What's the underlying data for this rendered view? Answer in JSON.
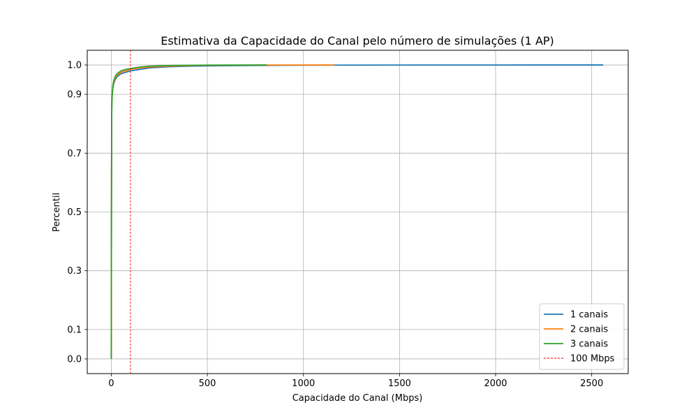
{
  "chart_data": {
    "type": "line",
    "title": "Estimativa da Capacidade do Canal pelo número de simulações (1 AP)",
    "xlabel": "Capacidade do Canal (Mbps)",
    "ylabel": "Percentil",
    "xlim": [
      -125,
      2690
    ],
    "ylim": [
      -0.05,
      1.05
    ],
    "xticks": [
      0,
      500,
      1000,
      1500,
      2000,
      2500
    ],
    "xtick_labels": [
      "0",
      "500",
      "1000",
      "1500",
      "2000",
      "2500"
    ],
    "yticks": [
      0.0,
      0.1,
      0.3,
      0.5,
      0.7,
      0.9,
      1.0
    ],
    "ytick_labels": [
      "0.0",
      "0.1",
      "0.3",
      "0.5",
      "0.7",
      "0.9",
      "1.0"
    ],
    "grid": true,
    "legend_position": "lower-right",
    "series": [
      {
        "name": "1 canais",
        "color": "#1f77b4",
        "x": [
          0,
          1,
          2,
          3,
          5,
          8,
          12,
          20,
          30,
          50,
          75,
          100,
          150,
          200,
          300,
          400,
          500,
          700,
          900,
          1200,
          1600,
          2000,
          2400,
          2560
        ],
        "y": [
          0.0,
          0.5,
          0.8,
          0.87,
          0.9,
          0.92,
          0.935,
          0.95,
          0.96,
          0.97,
          0.975,
          0.98,
          0.985,
          0.99,
          0.994,
          0.996,
          0.997,
          0.998,
          0.999,
          0.9995,
          0.9998,
          0.9999,
          1.0,
          1.0
        ]
      },
      {
        "name": "2 canais",
        "color": "#ff7f0e",
        "x": [
          0,
          1,
          2,
          3,
          5,
          8,
          12,
          20,
          30,
          50,
          75,
          100,
          150,
          200,
          300,
          400,
          500,
          700,
          900,
          1160
        ],
        "y": [
          0.0,
          0.5,
          0.8,
          0.87,
          0.9,
          0.925,
          0.94,
          0.955,
          0.965,
          0.975,
          0.98,
          0.985,
          0.99,
          0.993,
          0.996,
          0.998,
          0.999,
          0.9995,
          0.9998,
          1.0
        ]
      },
      {
        "name": "3 canais",
        "color": "#2ca02c",
        "x": [
          0,
          1,
          2,
          3,
          5,
          8,
          12,
          20,
          30,
          50,
          75,
          100,
          150,
          200,
          300,
          400,
          500,
          600,
          700,
          810
        ],
        "y": [
          0.0,
          0.5,
          0.8,
          0.87,
          0.9,
          0.93,
          0.945,
          0.96,
          0.97,
          0.98,
          0.985,
          0.988,
          0.993,
          0.996,
          0.998,
          0.999,
          0.9995,
          0.9998,
          0.9999,
          1.0
        ]
      }
    ],
    "reference_line": {
      "name": "100 Mbps",
      "x": 100,
      "color": "#ff0000",
      "style": "dashed"
    }
  }
}
